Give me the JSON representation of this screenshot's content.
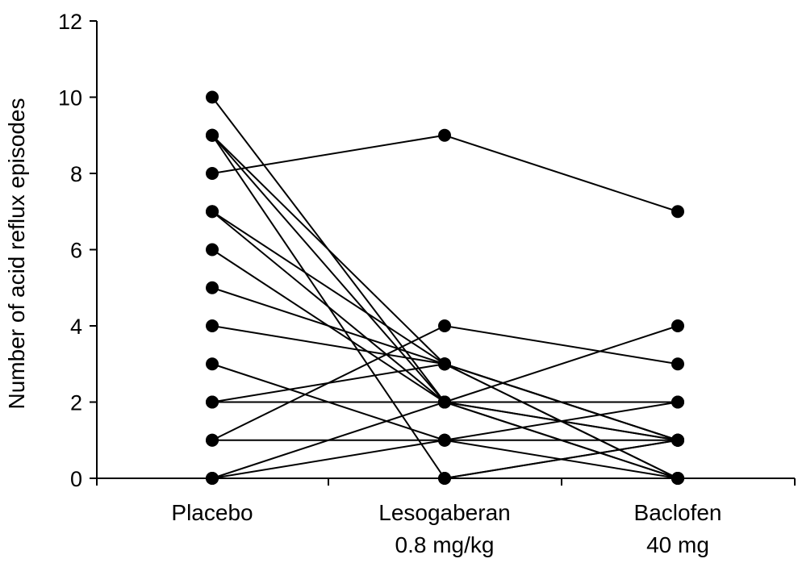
{
  "chart_data": {
    "type": "line",
    "title": "",
    "xlabel": "",
    "ylabel": "Number of acid reflux episodes",
    "categories": [
      [
        "Placebo"
      ],
      [
        "Lesogaberan",
        "0.8 mg/kg"
      ],
      [
        "Baclofen",
        "40 mg"
      ]
    ],
    "ylim": [
      0,
      12
    ],
    "yticks": [
      0,
      2,
      4,
      6,
      8,
      10,
      12
    ],
    "grid": false,
    "legend": "none",
    "colors": {
      "line": "#000000",
      "marker": "#000000"
    },
    "series": [
      {
        "values": [
          10,
          2,
          1
        ]
      },
      {
        "values": [
          9,
          3,
          0
        ]
      },
      {
        "values": [
          9,
          2,
          0
        ]
      },
      {
        "values": [
          9,
          0,
          1
        ]
      },
      {
        "values": [
          8,
          9,
          7
        ]
      },
      {
        "values": [
          7,
          3,
          1
        ]
      },
      {
        "values": [
          7,
          2,
          1
        ]
      },
      {
        "values": [
          6,
          2,
          0
        ]
      },
      {
        "values": [
          5,
          3,
          0
        ]
      },
      {
        "values": [
          4,
          3,
          1
        ]
      },
      {
        "values": [
          3,
          1,
          0
        ]
      },
      {
        "values": [
          2,
          3,
          1
        ]
      },
      {
        "values": [
          2,
          2,
          2
        ]
      },
      {
        "values": [
          1,
          1,
          1
        ]
      },
      {
        "values": [
          1,
          4,
          3
        ]
      },
      {
        "values": [
          0,
          2,
          4
        ]
      },
      {
        "values": [
          0,
          1,
          2
        ]
      },
      {
        "values": [
          0,
          0,
          1
        ]
      }
    ]
  }
}
